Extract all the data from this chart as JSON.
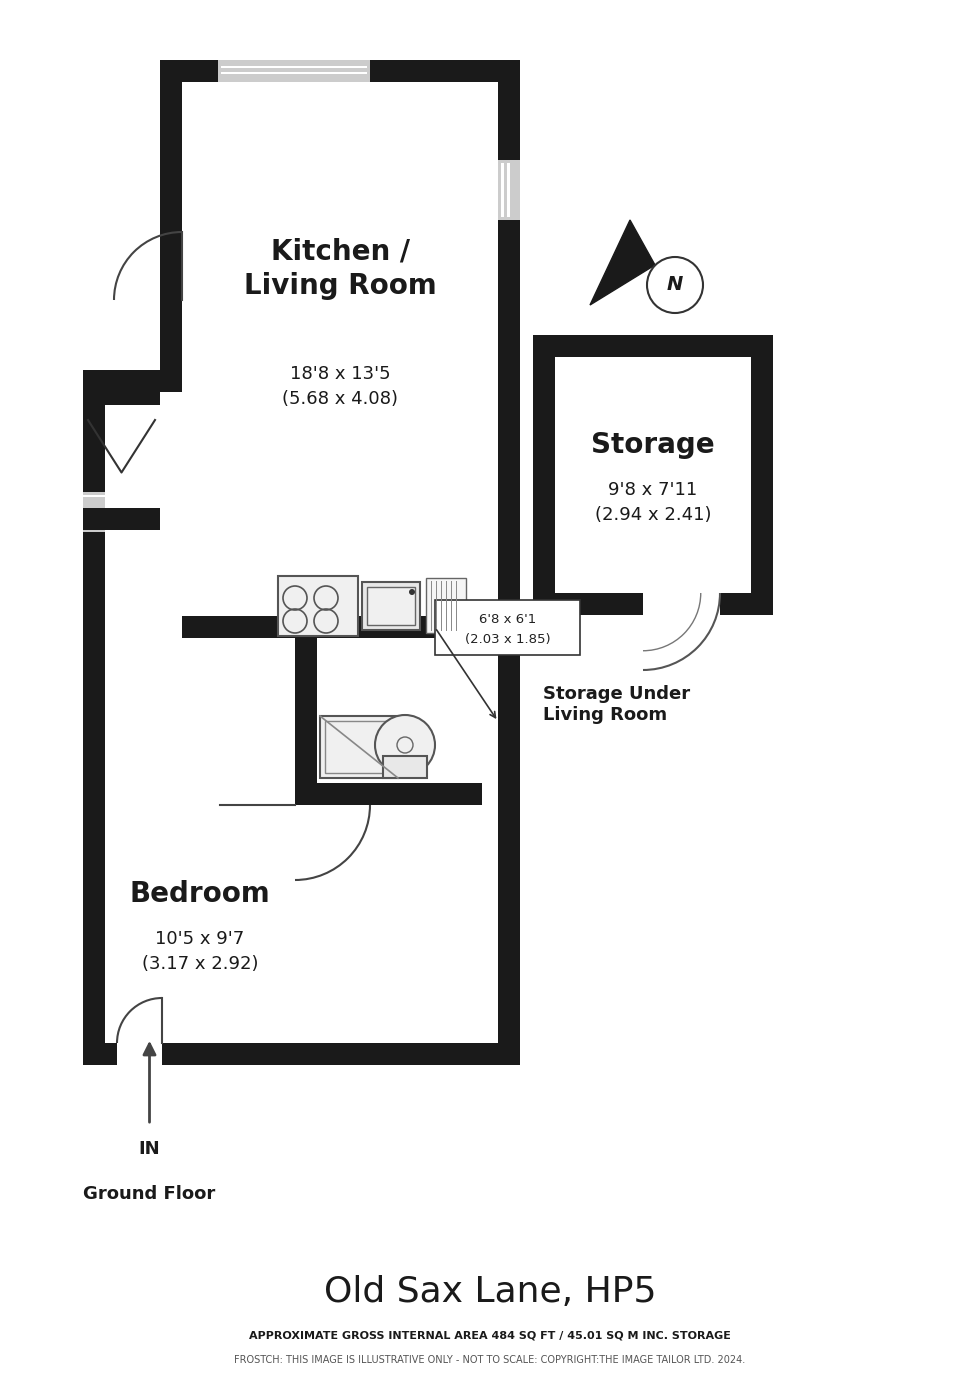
{
  "title": "Old Sax Lane, HP5",
  "subtitle1": "APPROXIMATE GROSS INTERNAL AREA 484 SQ FT / 45.01 SQ M INC. STORAGE",
  "subtitle2": "FROSTCH: THIS IMAGE IS ILLUSTRATIVE ONLY - NOT TO SCALE: COPYRIGHT:THE IMAGE TAILOR LTD. 2024.",
  "ground_floor_label": "Ground Floor",
  "storage_under_label": "Storage Under\nLiving Room",
  "wall_color": "#1a1a1a",
  "bg_color": "#ffffff",
  "rooms": {
    "kitchen_living": {
      "label": "Kitchen /\nLiving Room",
      "dim1": "18'8 x 13'5",
      "dim2": "(5.68 x 4.08)"
    },
    "bedroom": {
      "label": "Bedroom",
      "dim1": "10'5 x 9'7",
      "dim2": "(3.17 x 2.92)"
    },
    "storage": {
      "label": "Storage",
      "dim1": "9'8 x 7'11",
      "dim2": "(2.94 x 2.41)"
    },
    "hallway": {
      "label": "6'8 x 6'1",
      "dim2": "(2.03 x 1.85)"
    }
  }
}
